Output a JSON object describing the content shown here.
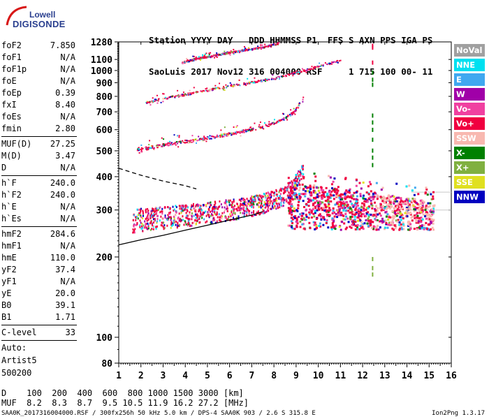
{
  "logo": {
    "line1": "Lowell",
    "line2": "DIGISONDE"
  },
  "header": {
    "labels": "Station YYYY DAY   DDD HHMMSS P1  FFS S AXN PPS IGA PS",
    "values": "SaoLuis 2017 Nov12 316 004000 RSF     1 715 100 00- 11"
  },
  "params": [
    {
      "name": "foF2",
      "value": "7.850"
    },
    {
      "name": "foF1",
      "value": "N/A"
    },
    {
      "name": "foF1p",
      "value": "N/A"
    },
    {
      "name": "foE",
      "value": "N/A"
    },
    {
      "name": "foEp",
      "value": "0.39"
    },
    {
      "name": "fxI",
      "value": "8.40"
    },
    {
      "name": "foEs",
      "value": "N/A"
    },
    {
      "name": "fmin",
      "value": "2.80"
    },
    {
      "sep": true
    },
    {
      "name": "MUF(D)",
      "value": "27.25"
    },
    {
      "name": "M(D)",
      "value": "3.47"
    },
    {
      "name": "D",
      "value": "N/A"
    },
    {
      "sep": true
    },
    {
      "name": "h`F",
      "value": "240.0"
    },
    {
      "name": "h`F2",
      "value": "240.0"
    },
    {
      "name": "h`E",
      "value": "N/A"
    },
    {
      "name": "h`Es",
      "value": "N/A"
    },
    {
      "sep": true
    },
    {
      "name": "hmF2",
      "value": "284.6"
    },
    {
      "name": "hmF1",
      "value": "N/A"
    },
    {
      "name": "hmE",
      "value": "110.0"
    },
    {
      "name": "yF2",
      "value": "37.4"
    },
    {
      "name": "yF1",
      "value": "N/A"
    },
    {
      "name": "yE",
      "value": "20.0"
    },
    {
      "name": "B0",
      "value": "39.1"
    },
    {
      "name": "B1",
      "value": "1.71"
    },
    {
      "sep": true
    },
    {
      "name": "C-level",
      "value": "33"
    },
    {
      "sep": true
    },
    {
      "text": "Auto:"
    },
    {
      "text": "Artist5"
    },
    {
      "text": "500200"
    }
  ],
  "legend": [
    {
      "label": "NoVal",
      "color": "#a0a0a0"
    },
    {
      "label": "NNE",
      "color": "#00e0f0"
    },
    {
      "label": "E",
      "color": "#40a8f0"
    },
    {
      "label": "W",
      "color": "#a000a8"
    },
    {
      "label": "Vo-",
      "color": "#f040a0"
    },
    {
      "label": "Vo+",
      "color": "#f00040"
    },
    {
      "label": "SSW",
      "color": "#f8b8b0"
    },
    {
      "label": "X-",
      "color": "#008000"
    },
    {
      "label": "X+",
      "color": "#80b040"
    },
    {
      "label": "SSE",
      "color": "#e0e020"
    },
    {
      "label": "NNW",
      "color": "#0000c0"
    }
  ],
  "bottom": {
    "d_row": "D    100  200  400  600  800 1000 1500 3000 [km]",
    "muf_row": "MUF  8.2  8.3  8.7  9.5 10.5 11.9 16.2 27.2 [MHz]"
  },
  "footer": "SAA0K_2017316004000.RSF / 300fx256h 50 kHz 5.0 km / DPS-4 SAA0K 903 / 2.6 S 315.8 E",
  "version": "Ion2Png 1.3.17",
  "chart_data": {
    "type": "scatter",
    "title": "",
    "xlabel": "",
    "ylabel": "",
    "xlim": [
      1,
      16
    ],
    "ylim": [
      80,
      1280
    ],
    "y_scale": "log",
    "x_ticks": [
      1,
      2,
      3,
      4,
      5,
      6,
      7,
      8,
      9,
      10,
      11,
      12,
      13,
      14,
      15,
      16
    ],
    "y_ticks": [
      80,
      100,
      200,
      300,
      400,
      500,
      600,
      700,
      800,
      900,
      1000,
      1100,
      1280
    ],
    "grid": false,
    "legend_position": "right",
    "echo_traces": [
      {
        "name": "O1",
        "x": [
          1.6,
          2.5,
          3.5,
          4.5,
          5.5,
          6.5,
          7.2,
          7.8,
          8.4,
          8.9,
          9.3
        ],
        "y": [
          265,
          272,
          275,
          282,
          288,
          298,
          305,
          315,
          330,
          360,
          420
        ]
      },
      {
        "name": "O2",
        "x": [
          1.8,
          2.5,
          3.5,
          4.5,
          5.5,
          6.5,
          7.5,
          8.3,
          8.9,
          9.3
        ],
        "y": [
          505,
          515,
          535,
          548,
          568,
          590,
          615,
          650,
          700,
          790
        ]
      },
      {
        "name": "O3",
        "x": [
          2.2,
          3.0,
          4.0,
          5.0,
          6.0,
          7.0,
          8.0,
          8.8,
          9.5,
          10.3,
          11.0
        ],
        "y": [
          760,
          785,
          815,
          845,
          875,
          905,
          935,
          975,
          1010,
          1055,
          1095
        ]
      },
      {
        "name": "O4",
        "x": [
          3.8,
          4.5,
          5.5,
          6.5,
          7.5,
          8.2
        ],
        "y": [
          1070,
          1110,
          1150,
          1190,
          1225,
          1270
        ]
      }
    ],
    "profile_curves": [
      {
        "name": "true-height",
        "style": "solid",
        "x": [
          1.0,
          2.0,
          3.0,
          4.0,
          5.0,
          6.0,
          7.0,
          7.5
        ],
        "y": [
          222,
          232,
          241,
          252,
          263,
          275,
          287,
          296
        ]
      },
      {
        "name": "model",
        "style": "dashed",
        "x": [
          1.0,
          2.0,
          3.0,
          4.0,
          4.5
        ],
        "y": [
          430,
          405,
          385,
          370,
          360
        ]
      }
    ]
  }
}
